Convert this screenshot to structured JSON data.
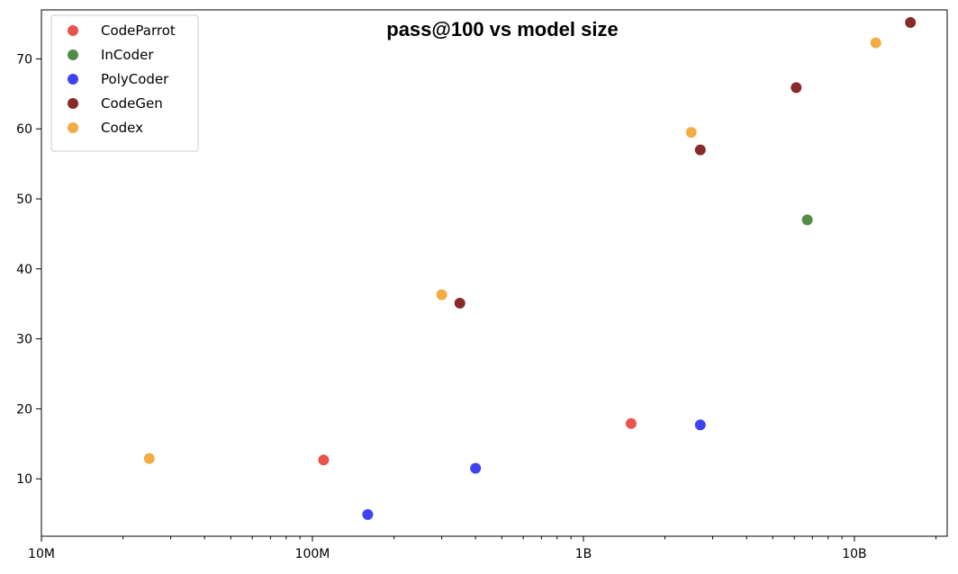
{
  "chart_data": {
    "type": "scatter",
    "title": "pass@100 vs model size",
    "xlabel": "",
    "ylabel": "",
    "xscale": "log",
    "xlim": [
      10000000,
      22000000000
    ],
    "ylim": [
      1.8,
      77
    ],
    "x_ticks": [
      {
        "value": 10000000,
        "label": "10M"
      },
      {
        "value": 100000000,
        "label": "100M"
      },
      {
        "value": 1000000000,
        "label": "1B"
      },
      {
        "value": 10000000000,
        "label": "10B"
      }
    ],
    "y_ticks": [
      {
        "value": 10,
        "label": "10"
      },
      {
        "value": 20,
        "label": "20"
      },
      {
        "value": 30,
        "label": "30"
      },
      {
        "value": 40,
        "label": "40"
      },
      {
        "value": 50,
        "label": "50"
      },
      {
        "value": 60,
        "label": "60"
      },
      {
        "value": 70,
        "label": "70"
      }
    ],
    "legend_position": "top-left",
    "grid": false,
    "series": [
      {
        "name": "CodeParrot",
        "color": "#e8413b",
        "points": [
          {
            "x": 110000000,
            "y": 12.7
          },
          {
            "x": 1500000000,
            "y": 17.9
          }
        ]
      },
      {
        "name": "InCoder",
        "color": "#3f7e34",
        "points": [
          {
            "x": 6700000000,
            "y": 47.0
          }
        ]
      },
      {
        "name": "PolyCoder",
        "color": "#2a2ef0",
        "points": [
          {
            "x": 160000000,
            "y": 4.9
          },
          {
            "x": 400000000,
            "y": 11.5
          },
          {
            "x": 2700000000,
            "y": 17.7
          }
        ]
      },
      {
        "name": "CodeGen",
        "color": "#7a1412",
        "points": [
          {
            "x": 350000000,
            "y": 35.1
          },
          {
            "x": 2700000000,
            "y": 57.0
          },
          {
            "x": 6100000000,
            "y": 65.9
          },
          {
            "x": 16100000000,
            "y": 75.2
          }
        ]
      },
      {
        "name": "Codex",
        "color": "#f0a331",
        "points": [
          {
            "x": 25000000,
            "y": 12.9
          },
          {
            "x": 300000000,
            "y": 36.3
          },
          {
            "x": 2500000000,
            "y": 59.5
          },
          {
            "x": 12000000000,
            "y": 72.3
          }
        ]
      }
    ]
  }
}
